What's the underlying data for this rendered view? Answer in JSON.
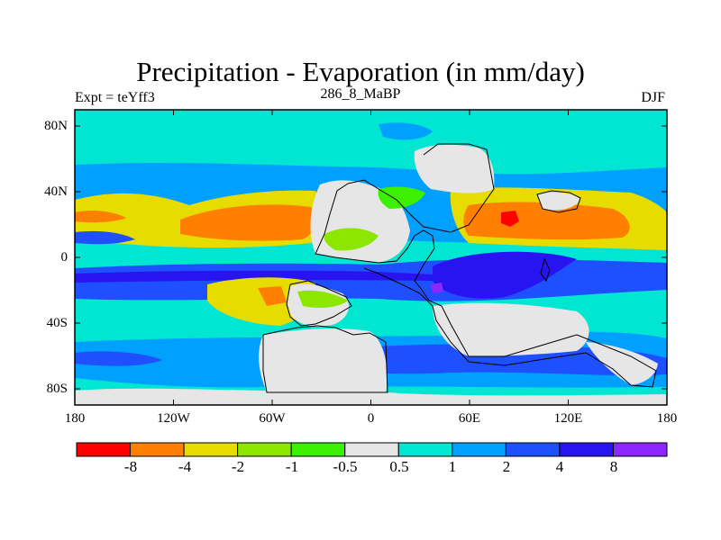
{
  "header": {
    "title": "Precipitation - Evaporation (in mm/day)",
    "experiment_label": "Expt = teYff3",
    "period_label": "286_8_MaBP",
    "season_label": "DJF"
  },
  "map": {
    "longitude_ticks": [
      "180",
      "120W",
      "60W",
      "0",
      "60E",
      "120E",
      "180"
    ],
    "latitude_ticks": [
      "80N",
      "40N",
      "0",
      "40S",
      "80S"
    ]
  },
  "colorbar": {
    "labels": [
      "-8",
      "-4",
      "-2",
      "-1",
      "-0.5",
      "0.5",
      "1",
      "2",
      "4",
      "8"
    ],
    "colors": [
      "#ff0000",
      "#ff8000",
      "#e6dc00",
      "#8ce600",
      "#3cf000",
      "#e6e6e6",
      "#00e6d2",
      "#00a0ff",
      "#1e50ff",
      "#2814f0",
      "#8c28ff"
    ]
  },
  "palette": {
    "bg": "#00e6d2",
    "land": "#e6e6e6",
    "orange": "#ff8000",
    "yellow": "#e6dc00",
    "lightgreen": "#8ce600",
    "green": "#3cf000",
    "skyblue": "#00a0ff",
    "blue": "#1e50ff",
    "darkblue": "#2814f0",
    "violet": "#8c28ff",
    "red": "#ff0000"
  }
}
